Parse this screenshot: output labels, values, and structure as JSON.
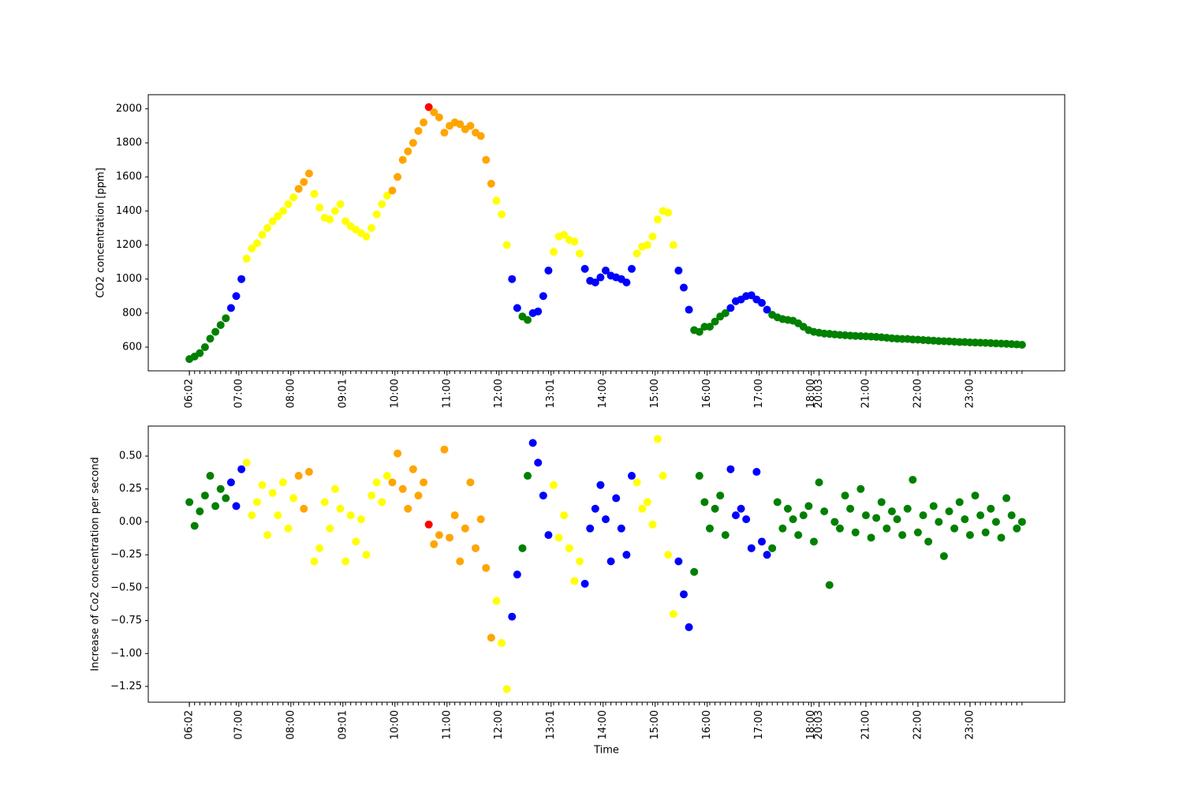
{
  "chart_data": [
    {
      "type": "scatter",
      "ylabel": "CO2 concentration [ppm]",
      "x": [
        0,
        2,
        4,
        6,
        8,
        10,
        12,
        14,
        16,
        18,
        20,
        22,
        24,
        26,
        28,
        30,
        32,
        34,
        36,
        38,
        40,
        42,
        44,
        46,
        48,
        50,
        52,
        54,
        56,
        58,
        60,
        62,
        64,
        66,
        68,
        70,
        72,
        74,
        76,
        78,
        80,
        82,
        84,
        86,
        88,
        90,
        92,
        94,
        96,
        98,
        100,
        102,
        104,
        106,
        108,
        110,
        112,
        114,
        116,
        118,
        120,
        122,
        124,
        126,
        128,
        130,
        132,
        134,
        136,
        138,
        140,
        142,
        144,
        146,
        148,
        150,
        152,
        154,
        156,
        158,
        160,
        162,
        164,
        166,
        168,
        170,
        172,
        174,
        176,
        178,
        180,
        182,
        184,
        186,
        188,
        190,
        192,
        194,
        196,
        198,
        200,
        202,
        204,
        206,
        208,
        210,
        212,
        214,
        216,
        218,
        220,
        222,
        224,
        226,
        228,
        230,
        232,
        234,
        236,
        238,
        240,
        242,
        244,
        246,
        248,
        250,
        252,
        254,
        256,
        258,
        260,
        262,
        264,
        266,
        268,
        270,
        272,
        274,
        276,
        278,
        280,
        282,
        284,
        286,
        288,
        290,
        292,
        294,
        296,
        298,
        300,
        302,
        304,
        306,
        308,
        310,
        312,
        314,
        316,
        318,
        320
      ],
      "values": [
        530,
        545,
        565,
        600,
        650,
        690,
        730,
        770,
        830,
        900,
        1000,
        1120,
        1180,
        1210,
        1260,
        1300,
        1340,
        1370,
        1400,
        1440,
        1480,
        1530,
        1570,
        1620,
        1500,
        1420,
        1360,
        1350,
        1400,
        1440,
        1340,
        1310,
        1290,
        1270,
        1250,
        1300,
        1380,
        1440,
        1490,
        1520,
        1600,
        1700,
        1750,
        1800,
        1870,
        1920,
        2010,
        1980,
        1950,
        1860,
        1900,
        1920,
        1910,
        1880,
        1900,
        1860,
        1840,
        1700,
        1560,
        1460,
        1380,
        1200,
        1000,
        830,
        780,
        760,
        800,
        810,
        900,
        1050,
        1160,
        1250,
        1260,
        1230,
        1220,
        1150,
        1060,
        990,
        980,
        1010,
        1050,
        1020,
        1010,
        1000,
        980,
        1060,
        1150,
        1190,
        1200,
        1250,
        1350,
        1400,
        1390,
        1200,
        1050,
        950,
        820,
        700,
        690,
        720,
        720,
        750,
        780,
        800,
        830,
        870,
        880,
        900,
        905,
        880,
        860,
        820,
        790,
        775,
        765,
        760,
        755,
        740,
        720,
        700,
        690,
        685,
        680,
        678,
        675,
        672,
        670,
        668,
        666,
        665,
        664,
        662,
        660,
        658,
        655,
        652,
        650,
        648,
        648,
        645,
        644,
        642,
        640,
        638,
        636,
        635,
        634,
        632,
        630,
        630,
        628,
        627,
        626,
        625,
        624,
        622,
        621,
        620,
        618,
        616,
        614
      ],
      "colors": [
        "green",
        "green",
        "green",
        "green",
        "green",
        "green",
        "green",
        "green",
        "blue",
        "blue",
        "blue",
        "yellow",
        "yellow",
        "yellow",
        "yellow",
        "yellow",
        "yellow",
        "yellow",
        "yellow",
        "yellow",
        "yellow",
        "orange",
        "orange",
        "orange",
        "yellow",
        "yellow",
        "yellow",
        "yellow",
        "yellow",
        "yellow",
        "yellow",
        "yellow",
        "yellow",
        "yellow",
        "yellow",
        "yellow",
        "yellow",
        "yellow",
        "yellow",
        "orange",
        "orange",
        "orange",
        "orange",
        "orange",
        "orange",
        "orange",
        "red",
        "orange",
        "orange",
        "orange",
        "orange",
        "orange",
        "orange",
        "orange",
        "orange",
        "orange",
        "orange",
        "orange",
        "orange",
        "yellow",
        "yellow",
        "yellow",
        "blue",
        "blue",
        "green",
        "green",
        "blue",
        "blue",
        "blue",
        "blue",
        "yellow",
        "yellow",
        "yellow",
        "yellow",
        "yellow",
        "yellow",
        "blue",
        "blue",
        "blue",
        "blue",
        "blue",
        "blue",
        "blue",
        "blue",
        "blue",
        "blue",
        "yellow",
        "yellow",
        "yellow",
        "yellow",
        "yellow",
        "yellow",
        "yellow",
        "yellow",
        "blue",
        "blue",
        "blue",
        "green",
        "green",
        "green",
        "green",
        "green",
        "green",
        "green",
        "blue",
        "blue",
        "blue",
        "blue",
        "blue",
        "blue",
        "blue",
        "blue",
        "green",
        "green",
        "green",
        "green",
        "green",
        "green",
        "green",
        "green",
        "green",
        "green",
        "green",
        "green",
        "green",
        "green",
        "green",
        "green",
        "green",
        "green",
        "green",
        "green",
        "green",
        "green",
        "green",
        "green",
        "green",
        "green",
        "green",
        "green",
        "green",
        "green",
        "green",
        "green",
        "green",
        "green",
        "green",
        "green",
        "green",
        "green",
        "green",
        "green",
        "green",
        "green",
        "green",
        "green",
        "green",
        "green",
        "green",
        "green",
        "green"
      ],
      "xlim": [
        -15.8,
        336.4
      ],
      "ylim": [
        461,
        2083
      ],
      "yticks": [
        600,
        800,
        1000,
        1200,
        1400,
        1600,
        1800,
        2000
      ],
      "xticks": [
        {
          "value": 0,
          "label": "06:02"
        },
        {
          "value": 19,
          "label": "07:00"
        },
        {
          "value": 39,
          "label": "08:00"
        },
        {
          "value": 59,
          "label": "09:01"
        },
        {
          "value": 79,
          "label": "10:00"
        },
        {
          "value": 99,
          "label": "11:00"
        },
        {
          "value": 119,
          "label": "12:00"
        },
        {
          "value": 139,
          "label": "13:01"
        },
        {
          "value": 159,
          "label": "14:00"
        },
        {
          "value": 179,
          "label": "15:00"
        },
        {
          "value": 199,
          "label": "16:00"
        },
        {
          "value": 219,
          "label": "17:00"
        },
        {
          "value": 239,
          "label": "18:00"
        },
        {
          "value": 242,
          "label": "20:03"
        },
        {
          "value": 260,
          "label": "21:00"
        },
        {
          "value": 280,
          "label": "22:00"
        },
        {
          "value": 300,
          "label": "23:00"
        }
      ]
    },
    {
      "type": "scatter",
      "ylabel": "Increase of Co2 concentration per second",
      "xlabel": "Time",
      "x": [
        0,
        2,
        4,
        6,
        8,
        10,
        12,
        14,
        16,
        18,
        20,
        22,
        24,
        26,
        28,
        30,
        32,
        34,
        36,
        38,
        40,
        42,
        44,
        46,
        48,
        50,
        52,
        54,
        56,
        58,
        60,
        62,
        64,
        66,
        68,
        70,
        72,
        74,
        76,
        78,
        80,
        82,
        84,
        86,
        88,
        90,
        92,
        94,
        96,
        98,
        100,
        102,
        104,
        106,
        108,
        110,
        112,
        114,
        116,
        118,
        120,
        122,
        124,
        126,
        128,
        130,
        132,
        134,
        136,
        138,
        140,
        142,
        144,
        146,
        148,
        150,
        152,
        154,
        156,
        158,
        160,
        162,
        164,
        166,
        168,
        170,
        172,
        174,
        176,
        178,
        180,
        182,
        184,
        186,
        188,
        190,
        192,
        194,
        196,
        198,
        200,
        202,
        204,
        206,
        208,
        210,
        212,
        214,
        216,
        218,
        220,
        222,
        224,
        226,
        228,
        230,
        232,
        234,
        236,
        238,
        240,
        242,
        244,
        246,
        248,
        250,
        252,
        254,
        256,
        258,
        260,
        262,
        264,
        266,
        268,
        270,
        272,
        274,
        276,
        278,
        280,
        282,
        284,
        286,
        288,
        290,
        292,
        294,
        296,
        298,
        300,
        302,
        304,
        306,
        308,
        310,
        312,
        314,
        316,
        318,
        320
      ],
      "values": [
        0.15,
        -0.03,
        0.08,
        0.2,
        0.35,
        0.12,
        0.25,
        0.18,
        0.3,
        0.12,
        0.4,
        0.45,
        0.05,
        0.15,
        0.28,
        -0.1,
        0.22,
        0.05,
        0.3,
        -0.05,
        0.18,
        0.35,
        0.1,
        0.38,
        -0.3,
        -0.2,
        0.15,
        -0.05,
        0.25,
        0.1,
        -0.3,
        0.05,
        -0.15,
        0.02,
        -0.25,
        0.2,
        0.3,
        0.15,
        0.35,
        0.3,
        0.52,
        0.25,
        0.1,
        0.4,
        0.2,
        0.3,
        -0.02,
        -0.17,
        -0.1,
        0.55,
        -0.12,
        0.05,
        -0.3,
        -0.05,
        0.3,
        -0.2,
        0.02,
        -0.35,
        -0.88,
        -0.6,
        -0.92,
        -1.27,
        -0.72,
        -0.4,
        -0.2,
        0.35,
        0.6,
        0.45,
        0.2,
        -0.1,
        0.28,
        -0.12,
        0.05,
        -0.2,
        -0.45,
        -0.3,
        -0.47,
        -0.05,
        0.1,
        0.28,
        0.02,
        -0.3,
        0.18,
        -0.05,
        -0.25,
        0.35,
        0.3,
        0.1,
        0.15,
        -0.02,
        0.63,
        0.35,
        -0.25,
        -0.7,
        -0.3,
        -0.55,
        -0.8,
        -0.38,
        0.35,
        0.15,
        -0.05,
        0.1,
        0.2,
        -0.1,
        0.4,
        0.05,
        0.1,
        0.02,
        -0.2,
        0.38,
        -0.15,
        -0.25,
        -0.2,
        0.15,
        -0.05,
        0.1,
        0.02,
        -0.1,
        0.05,
        0.12,
        -0.15,
        0.3,
        0.08,
        -0.48,
        0.0,
        -0.05,
        0.2,
        0.1,
        -0.08,
        0.25,
        0.05,
        -0.12,
        0.03,
        0.15,
        -0.05,
        0.08,
        0.02,
        -0.1,
        0.1,
        0.32,
        -0.08,
        0.05,
        -0.15,
        0.12,
        0.0,
        -0.26,
        0.08,
        -0.05,
        0.15,
        0.02,
        -0.1,
        0.2,
        0.05,
        -0.08,
        0.1,
        0.0,
        -0.12,
        0.18,
        0.05,
        -0.05,
        0.0
      ],
      "colors": [
        "green",
        "green",
        "green",
        "green",
        "green",
        "green",
        "green",
        "green",
        "blue",
        "blue",
        "blue",
        "yellow",
        "yellow",
        "yellow",
        "yellow",
        "yellow",
        "yellow",
        "yellow",
        "yellow",
        "yellow",
        "yellow",
        "orange",
        "orange",
        "orange",
        "yellow",
        "yellow",
        "yellow",
        "yellow",
        "yellow",
        "yellow",
        "yellow",
        "yellow",
        "yellow",
        "yellow",
        "yellow",
        "yellow",
        "yellow",
        "yellow",
        "yellow",
        "orange",
        "orange",
        "orange",
        "orange",
        "orange",
        "orange",
        "orange",
        "red",
        "orange",
        "orange",
        "orange",
        "orange",
        "orange",
        "orange",
        "orange",
        "orange",
        "orange",
        "orange",
        "orange",
        "orange",
        "yellow",
        "yellow",
        "yellow",
        "blue",
        "blue",
        "green",
        "green",
        "blue",
        "blue",
        "blue",
        "blue",
        "yellow",
        "yellow",
        "yellow",
        "yellow",
        "yellow",
        "yellow",
        "blue",
        "blue",
        "blue",
        "blue",
        "blue",
        "blue",
        "blue",
        "blue",
        "blue",
        "blue",
        "yellow",
        "yellow",
        "yellow",
        "yellow",
        "yellow",
        "yellow",
        "yellow",
        "yellow",
        "blue",
        "blue",
        "blue",
        "green",
        "green",
        "green",
        "green",
        "green",
        "green",
        "green",
        "blue",
        "blue",
        "blue",
        "blue",
        "blue",
        "blue",
        "blue",
        "blue",
        "green",
        "green",
        "green",
        "green",
        "green",
        "green",
        "green",
        "green",
        "green",
        "green",
        "green",
        "green",
        "green",
        "green",
        "green",
        "green",
        "green",
        "green",
        "green",
        "green",
        "green",
        "green",
        "green",
        "green",
        "green",
        "green",
        "green",
        "green",
        "green",
        "green",
        "green",
        "green",
        "green",
        "green",
        "green",
        "green",
        "green",
        "green",
        "green",
        "green",
        "green",
        "green",
        "green",
        "green",
        "green",
        "green",
        "green",
        "green",
        "green"
      ],
      "xlim": [
        -15.8,
        336.4
      ],
      "ylim": [
        -1.37,
        0.728
      ],
      "yticks": [
        {
          "value": -1.25,
          "label": "−1.25"
        },
        {
          "value": -1,
          "label": "−1.00"
        },
        {
          "value": -0.75,
          "label": "−0.75"
        },
        {
          "value": -0.5,
          "label": "−0.50"
        },
        {
          "value": -0.25,
          "label": "−0.25"
        },
        {
          "value": 0,
          "label": "0.00"
        },
        {
          "value": 0.25,
          "label": "0.25"
        },
        {
          "value": 0.5,
          "label": "0.50"
        }
      ],
      "xticks": [
        {
          "value": 0,
          "label": "06:02"
        },
        {
          "value": 19,
          "label": "07:00"
        },
        {
          "value": 39,
          "label": "08:00"
        },
        {
          "value": 59,
          "label": "09:01"
        },
        {
          "value": 79,
          "label": "10:00"
        },
        {
          "value": 99,
          "label": "11:00"
        },
        {
          "value": 119,
          "label": "12:00"
        },
        {
          "value": 139,
          "label": "13:01"
        },
        {
          "value": 159,
          "label": "14:00"
        },
        {
          "value": 179,
          "label": "15:00"
        },
        {
          "value": 199,
          "label": "16:00"
        },
        {
          "value": 219,
          "label": "17:00"
        },
        {
          "value": 239,
          "label": "18:00"
        },
        {
          "value": 242,
          "label": "20:03"
        },
        {
          "value": 260,
          "label": "21:00"
        },
        {
          "value": 280,
          "label": "22:00"
        },
        {
          "value": 300,
          "label": "23:00"
        }
      ]
    }
  ]
}
